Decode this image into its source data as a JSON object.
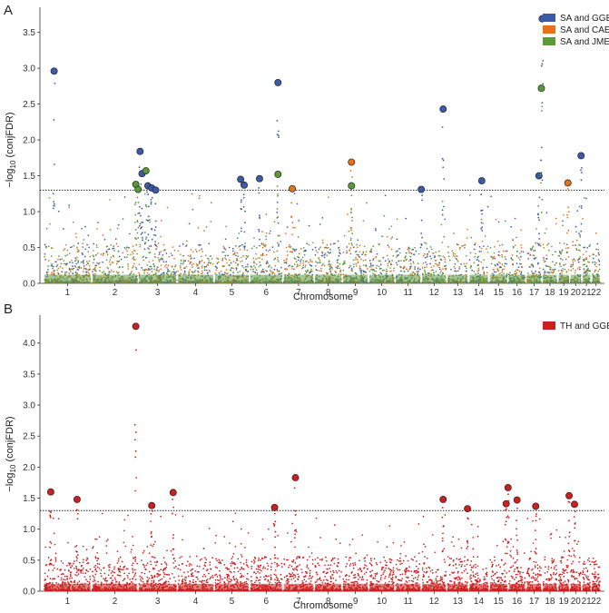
{
  "chart_data": [
    {
      "type": "scatter",
      "panel": "A",
      "title": "",
      "xlabel": "Chromosome",
      "ylabel": "−log10 (conjFDR)",
      "ylim": [
        0,
        3.85
      ],
      "yticks": [
        0.0,
        0.5,
        1.0,
        1.5,
        2.0,
        2.5,
        3.0,
        3.5
      ],
      "ytick_labels": [
        "0.0",
        "0.5",
        "1.0",
        "1.5",
        "2.0",
        "2.5",
        "3.0",
        "3.5"
      ],
      "threshold": 1.3,
      "categories": [
        "1",
        "2",
        "3",
        "4",
        "5",
        "6",
        "7",
        "8",
        "9",
        "10",
        "11",
        "12",
        "13",
        "14",
        "15",
        "16",
        "17",
        "18",
        "19",
        "20",
        "21",
        "22"
      ],
      "legend": [
        {
          "name": "SA and GGE",
          "color": "#3b5ba9"
        },
        {
          "name": "SA and CAE",
          "color": "#e8701a"
        },
        {
          "name": "SA and JME",
          "color": "#5a9a3a"
        }
      ],
      "highlighted": [
        {
          "series": "SA and GGE",
          "x": 0.22,
          "y": 2.96
        },
        {
          "series": "SA and GGE",
          "x": 2.05,
          "y": 1.84
        },
        {
          "series": "SA and GGE",
          "x": 2.1,
          "y": 1.53
        },
        {
          "series": "SA and GGE",
          "x": 2.25,
          "y": 1.36
        },
        {
          "series": "SA and GGE",
          "x": 2.35,
          "y": 1.33
        },
        {
          "series": "SA and GGE",
          "x": 2.45,
          "y": 1.3
        },
        {
          "series": "SA and GGE",
          "x": 4.75,
          "y": 1.45
        },
        {
          "series": "SA and GGE",
          "x": 4.85,
          "y": 1.37
        },
        {
          "series": "SA and GGE",
          "x": 5.3,
          "y": 1.46
        },
        {
          "series": "SA and GGE",
          "x": 5.85,
          "y": 2.8
        },
        {
          "series": "SA and GGE",
          "x": 11.0,
          "y": 1.31
        },
        {
          "series": "SA and GGE",
          "x": 11.85,
          "y": 2.43
        },
        {
          "series": "SA and GGE",
          "x": 13.65,
          "y": 1.43
        },
        {
          "series": "SA and GGE",
          "x": 16.8,
          "y": 1.5
        },
        {
          "series": "SA and GGE",
          "x": 17.0,
          "y": 3.69
        },
        {
          "series": "SA and GGE",
          "x": 19.95,
          "y": 1.78
        },
        {
          "series": "SA and CAE",
          "x": 6.3,
          "y": 1.32
        },
        {
          "series": "SA and CAE",
          "x": 8.35,
          "y": 1.69
        },
        {
          "series": "SA and CAE",
          "x": 18.85,
          "y": 1.4
        },
        {
          "series": "SA and JME",
          "x": 1.95,
          "y": 1.38
        },
        {
          "series": "SA and JME",
          "x": 2.0,
          "y": 1.31
        },
        {
          "series": "SA and JME",
          "x": 2.2,
          "y": 1.57
        },
        {
          "series": "SA and JME",
          "x": 5.85,
          "y": 1.52
        },
        {
          "series": "SA and JME",
          "x": 8.35,
          "y": 1.36
        },
        {
          "series": "SA and JME",
          "x": 16.95,
          "y": 2.72
        }
      ]
    },
    {
      "type": "scatter",
      "panel": "B",
      "title": "",
      "xlabel": "Chromosome",
      "ylabel": "−log10 (conjFDR)",
      "ylim": [
        0,
        4.45
      ],
      "yticks": [
        0.0,
        0.5,
        1.0,
        1.5,
        2.0,
        2.5,
        3.0,
        3.5,
        4.0
      ],
      "ytick_labels": [
        "0.0",
        "0.5",
        "1.0",
        "1.5",
        "2.0",
        "2.5",
        "3.0",
        "3.5",
        "4.0"
      ],
      "threshold": 1.3,
      "categories": [
        "1",
        "2",
        "3",
        "4",
        "5",
        "6",
        "7",
        "8",
        "9",
        "10",
        "11",
        "12",
        "13",
        "14",
        "15",
        "16",
        "17",
        "18",
        "19",
        "20",
        "21",
        "22"
      ],
      "legend": [
        {
          "name": "TH and GGE",
          "color": "#cc1f1f"
        }
      ],
      "highlighted": [
        {
          "series": "TH and GGE",
          "x": 0.15,
          "y": 1.6
        },
        {
          "series": "TH and GGE",
          "x": 0.7,
          "y": 1.48
        },
        {
          "series": "TH and GGE",
          "x": 1.95,
          "y": 4.27
        },
        {
          "series": "TH and GGE",
          "x": 2.35,
          "y": 1.38
        },
        {
          "series": "TH and GGE",
          "x": 2.9,
          "y": 1.59
        },
        {
          "series": "TH and GGE",
          "x": 5.75,
          "y": 1.35
        },
        {
          "series": "TH and GGE",
          "x": 6.4,
          "y": 1.83
        },
        {
          "series": "TH and GGE",
          "x": 11.85,
          "y": 1.48
        },
        {
          "series": "TH and GGE",
          "x": 12.95,
          "y": 1.33
        },
        {
          "series": "TH and GGE",
          "x": 14.9,
          "y": 1.41
        },
        {
          "series": "TH and GGE",
          "x": 15.0,
          "y": 1.67
        },
        {
          "series": "TH and GGE",
          "x": 15.5,
          "y": 1.47
        },
        {
          "series": "TH and GGE",
          "x": 16.6,
          "y": 1.37
        },
        {
          "series": "TH and GGE",
          "x": 18.95,
          "y": 1.54
        },
        {
          "series": "TH and GGE",
          "x": 19.4,
          "y": 1.4
        }
      ]
    }
  ],
  "labels": {
    "panel_a": "A",
    "panel_b": "B",
    "xlabel_a": "Chromosome",
    "xlabel_b": "Chromosome",
    "ylabel_prefix": "−log",
    "ylabel_sub": "10",
    "ylabel_suffix": " (conjFDR)"
  }
}
